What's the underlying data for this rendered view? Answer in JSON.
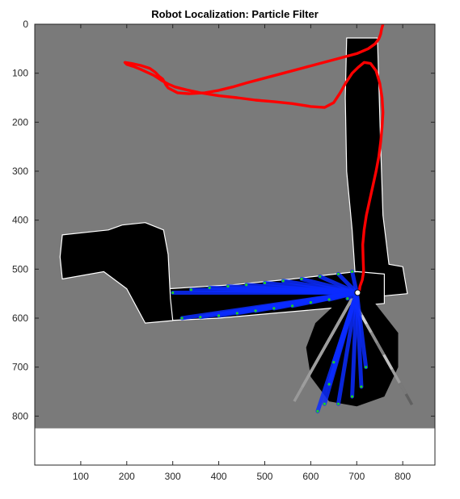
{
  "chart_data": {
    "type": "image_plot",
    "title": "Robot Localization: Particle Filter",
    "xlabel": "",
    "ylabel": "",
    "xlim": [
      0,
      870
    ],
    "ylim": [
      0,
      900
    ],
    "y_reversed": true,
    "x_ticks": [
      100,
      200,
      300,
      400,
      500,
      600,
      700,
      800
    ],
    "y_ticks": [
      0,
      100,
      200,
      300,
      400,
      500,
      600,
      700,
      800
    ],
    "map_extent": {
      "x": [
        0,
        870
      ],
      "y": [
        0,
        825
      ]
    },
    "colors": {
      "unknown": "#7a7a7a",
      "free": "#000000",
      "wall_edge": "#ffffff",
      "laser_rays": "#0a2cff",
      "laser_hits": "#1fd41f",
      "trajectory": "#ff0000",
      "robot_pose": "#ffffff"
    },
    "free_space_regions": [
      {
        "name": "north-corridor",
        "polygon": [
          [
            678,
            28
          ],
          [
            745,
            28
          ],
          [
            748,
            120
          ],
          [
            752,
            250
          ],
          [
            757,
            390
          ],
          [
            770,
            490
          ],
          [
            800,
            495
          ],
          [
            810,
            550
          ],
          [
            700,
            560
          ],
          [
            690,
            420
          ],
          [
            678,
            300
          ],
          [
            675,
            150
          ]
        ]
      },
      {
        "name": "main-corridor",
        "polygon": [
          [
            290,
            540
          ],
          [
            430,
            532
          ],
          [
            560,
            520
          ],
          [
            700,
            505
          ],
          [
            760,
            510
          ],
          [
            760,
            570
          ],
          [
            640,
            580
          ],
          [
            520,
            590
          ],
          [
            400,
            600
          ],
          [
            290,
            605
          ]
        ]
      },
      {
        "name": "west-room",
        "polygon": [
          [
            60,
            430
          ],
          [
            160,
            420
          ],
          [
            190,
            410
          ],
          [
            240,
            405
          ],
          [
            280,
            420
          ],
          [
            290,
            470
          ],
          [
            295,
            560
          ],
          [
            300,
            605
          ],
          [
            240,
            610
          ],
          [
            200,
            540
          ],
          [
            150,
            505
          ],
          [
            60,
            520
          ],
          [
            55,
            475
          ]
        ]
      }
    ],
    "fan_region": {
      "name": "south-fan",
      "polygon": [
        [
          650,
          575
        ],
        [
          740,
          570
        ],
        [
          790,
          630
        ],
        [
          790,
          700
        ],
        [
          760,
          760
        ],
        [
          700,
          780
        ],
        [
          640,
          770
        ],
        [
          600,
          720
        ],
        [
          590,
          660
        ],
        [
          610,
          610
        ]
      ],
      "origin": [
        690,
        560
      ],
      "angles_deg": [
        100,
        108,
        115,
        122,
        130,
        138,
        145,
        152,
        160,
        168,
        175,
        182,
        190,
        198,
        205,
        212,
        220,
        228,
        235,
        242,
        250,
        258,
        265,
        272
      ],
      "lengths": [
        220,
        205,
        190,
        170,
        150,
        135,
        120,
        110,
        100,
        95,
        90,
        88,
        85,
        90,
        95,
        105,
        115,
        125,
        140,
        155,
        170,
        185,
        200,
        210
      ]
    },
    "laser_scan": {
      "origin": [
        700,
        548
      ],
      "hit_points": [
        [
          300,
          548
        ],
        [
          340,
          542
        ],
        [
          380,
          538
        ],
        [
          420,
          535
        ],
        [
          460,
          532
        ],
        [
          500,
          528
        ],
        [
          540,
          524
        ],
        [
          580,
          520
        ],
        [
          620,
          515
        ],
        [
          660,
          510
        ],
        [
          690,
          505
        ],
        [
          680,
          560
        ],
        [
          640,
          562
        ],
        [
          600,
          568
        ],
        [
          560,
          575
        ],
        [
          520,
          580
        ],
        [
          480,
          585
        ],
        [
          440,
          590
        ],
        [
          400,
          595
        ],
        [
          360,
          598
        ],
        [
          320,
          600
        ],
        [
          650,
          690
        ],
        [
          640,
          735
        ],
        [
          630,
          775
        ],
        [
          615,
          790
        ],
        [
          660,
          775
        ],
        [
          690,
          760
        ],
        [
          710,
          740
        ],
        [
          720,
          700
        ]
      ]
    },
    "series": [
      {
        "x": [
          705,
          707,
          712,
          715,
          714,
          713,
          716,
          721,
          728,
          735,
          742,
          748,
          752,
          755,
          757,
          755,
          750,
          742,
          730,
          716,
          703,
          690,
          676,
          664,
          650,
          630,
          600,
          560,
          520,
          480,
          440,
          400,
          360,
          330,
          305,
          290,
          278,
          268,
          258,
          244,
          230,
          214,
          200,
          196,
          210,
          230,
          250,
          262,
          270,
          278,
          282,
          285,
          290,
          300,
          310,
          335,
          370,
          400,
          430,
          460,
          500,
          540,
          580,
          620,
          660,
          700,
          725,
          740,
          748,
          752,
          754,
          757,
          759,
          761,
          756,
          745,
          735,
          727,
          722,
          717,
          709,
          706
        ],
        "y": [
          548,
          535,
          522,
          505,
          480,
          450,
          420,
          390,
          360,
          330,
          300,
          270,
          240,
          210,
          180,
          150,
          120,
          95,
          80,
          78,
          88,
          100,
          120,
          140,
          160,
          170,
          168,
          162,
          158,
          155,
          150,
          146,
          140,
          134,
          128,
          122,
          116,
          110,
          104,
          98,
          92,
          86,
          82,
          78,
          80,
          84,
          90,
          98,
          106,
          112,
          118,
          124,
          130,
          135,
          140,
          142,
          140,
          135,
          128,
          120,
          110,
          100,
          90,
          80,
          70,
          60,
          50,
          40,
          30,
          20,
          10,
          0,
          -10,
          -20,
          -30,
          -40,
          -50,
          -60,
          -70,
          -80,
          -90,
          -95
        ],
        "comment_removed": true
      }
    ],
    "robot_pose": {
      "x": 702,
      "y": 548
    }
  }
}
